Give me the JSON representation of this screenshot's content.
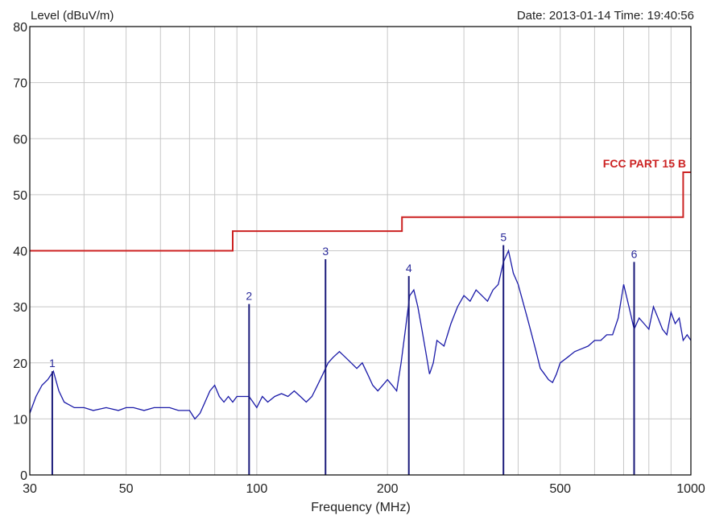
{
  "header": {
    "ylabel": "Level (dBuV/m)",
    "datetime": "Date: 2013-01-14  Time: 19:40:56"
  },
  "colors": {
    "background": "#ffffff",
    "grid": "#c8c8c8",
    "trace": "#1a1aa8",
    "limit": "#cc2222",
    "marker": "#1a1a7a"
  },
  "chart_data": {
    "type": "line",
    "xlabel": "Frequency (MHz)",
    "ylabel": "Level (dBuV/m)",
    "x_scale": "log",
    "xlim": [
      30,
      1000
    ],
    "ylim": [
      0,
      80
    ],
    "grid": true,
    "x_ticks": [
      30,
      50,
      100,
      200,
      500,
      1000
    ],
    "y_ticks": [
      0,
      10,
      20,
      30,
      40,
      50,
      60,
      70,
      80
    ],
    "limit_line": {
      "name": "FCC PART 15 B",
      "points": [
        [
          30,
          40
        ],
        [
          88,
          40
        ],
        [
          88,
          43.5
        ],
        [
          216,
          43.5
        ],
        [
          216,
          46
        ],
        [
          960,
          46
        ],
        [
          960,
          54
        ],
        [
          1000,
          54
        ]
      ]
    },
    "trace": {
      "x": [
        30,
        31,
        32,
        33,
        34,
        35,
        36,
        38,
        40,
        42,
        45,
        48,
        50,
        52,
        55,
        58,
        60,
        63,
        66,
        70,
        72,
        74,
        76,
        78,
        80,
        82,
        84,
        86,
        88,
        90,
        93,
        96,
        98,
        100,
        103,
        106,
        110,
        114,
        118,
        122,
        126,
        130,
        134,
        138,
        142,
        146,
        150,
        155,
        160,
        165,
        170,
        175,
        180,
        185,
        190,
        195,
        200,
        205,
        210,
        215,
        220,
        225,
        230,
        235,
        240,
        245,
        250,
        255,
        260,
        270,
        280,
        290,
        300,
        310,
        320,
        330,
        340,
        350,
        360,
        370,
        380,
        390,
        400,
        410,
        420,
        430,
        440,
        450,
        460,
        470,
        480,
        490,
        500,
        520,
        540,
        560,
        580,
        600,
        620,
        640,
        660,
        680,
        700,
        720,
        740,
        760,
        780,
        800,
        820,
        840,
        860,
        880,
        900,
        920,
        940,
        960,
        980,
        1000
      ],
      "y": [
        11,
        14,
        16,
        17,
        18.5,
        15,
        13,
        12,
        12,
        11.5,
        12,
        11.5,
        12,
        12,
        11.5,
        12,
        12,
        12,
        11.5,
        11.5,
        10,
        11,
        13,
        15,
        16,
        14,
        13,
        14,
        13,
        14,
        14,
        14,
        13,
        12,
        14,
        13,
        14,
        14.5,
        14,
        15,
        14,
        13,
        14,
        16,
        18,
        20,
        21,
        22,
        21,
        20,
        19,
        20,
        18,
        16,
        15,
        16,
        17,
        16,
        15,
        20,
        26,
        32,
        33,
        30,
        26,
        22,
        18,
        20,
        24,
        23,
        27,
        30,
        32,
        31,
        33,
        32,
        31,
        33,
        34,
        38,
        40,
        36,
        34,
        31,
        28,
        25,
        22,
        19,
        18,
        17,
        16.5,
        18,
        20,
        21,
        22,
        22.5,
        23,
        24,
        24,
        25,
        25,
        28,
        34,
        30,
        26,
        28,
        27,
        26,
        30,
        28,
        26,
        25,
        29,
        27,
        28,
        24,
        25,
        24
      ]
    },
    "markers": [
      {
        "label": "1",
        "x": 33.8,
        "y": 18.5
      },
      {
        "label": "2",
        "x": 96,
        "y": 30.5
      },
      {
        "label": "3",
        "x": 144,
        "y": 38.5
      },
      {
        "label": "4",
        "x": 224,
        "y": 35.5
      },
      {
        "label": "5",
        "x": 370,
        "y": 41
      },
      {
        "label": "6",
        "x": 740,
        "y": 38
      }
    ]
  }
}
